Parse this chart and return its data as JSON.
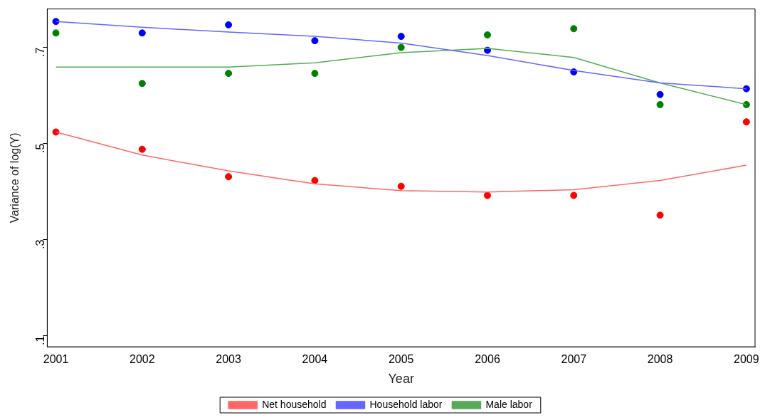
{
  "chart_data": {
    "type": "scatter",
    "xlabel": "Year",
    "ylabel": "Variance of log(Y)",
    "x": [
      2001,
      2002,
      2003,
      2004,
      2005,
      2006,
      2007,
      2008,
      2009
    ],
    "xlim": [
      2000.9,
      2009.1
    ],
    "xticks": [
      2001,
      2002,
      2003,
      2004,
      2005,
      2006,
      2007,
      2008,
      2009
    ],
    "ylim": [
      0.077,
      0.78
    ],
    "yticks": [
      {
        "value": 0.1,
        "label": ".1"
      },
      {
        "value": 0.3,
        "label": ".3"
      },
      {
        "value": 0.5,
        "label": ".5"
      },
      {
        "value": 0.7,
        "label": ".7"
      }
    ],
    "grid": false,
    "legend": "bottom",
    "marker": "circle",
    "series": [
      {
        "type": "line",
        "name": "Net household",
        "color": "#ff6666",
        "marker": "none",
        "line_style": "solid",
        "values": [
          0.524,
          0.476,
          0.443,
          0.416,
          0.402,
          0.399,
          0.404,
          0.423,
          0.455
        ]
      },
      {
        "type": "line",
        "name": "Household labor",
        "color": "#6666ff",
        "marker": "none",
        "line_style": "solid",
        "values": [
          0.754,
          0.742,
          0.732,
          0.723,
          0.709,
          0.683,
          0.652,
          0.626,
          0.614
        ]
      },
      {
        "type": "line",
        "name": "Male labor",
        "color": "#55aa55",
        "marker": "none",
        "line_style": "solid",
        "values": [
          0.659,
          0.659,
          0.659,
          0.668,
          0.689,
          0.698,
          0.679,
          0.626,
          0.581
        ]
      },
      {
        "type": "scatter",
        "color": "#ff0000",
        "values": [
          0.524,
          0.488,
          0.431,
          0.423,
          0.411,
          0.392,
          0.392,
          0.351,
          0.545
        ]
      },
      {
        "type": "scatter",
        "color": "#0000ff",
        "values": [
          0.754,
          0.73,
          0.747,
          0.714,
          0.723,
          0.694,
          0.649,
          0.602,
          0.614
        ]
      },
      {
        "type": "scatter",
        "color": "#008000",
        "values": [
          0.73,
          0.625,
          0.646,
          0.646,
          0.7,
          0.726,
          0.739,
          0.581,
          0.581
        ]
      }
    ]
  }
}
